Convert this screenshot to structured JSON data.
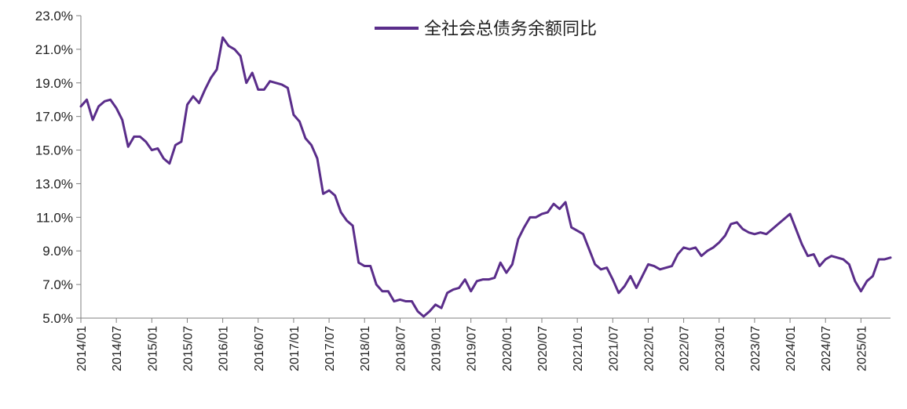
{
  "chart_data": {
    "type": "line",
    "title": "",
    "xlabel": "",
    "ylabel": "",
    "ylim": [
      0.05,
      0.23
    ],
    "y_ticks": [
      0.05,
      0.07,
      0.09,
      0.11,
      0.13,
      0.15,
      0.17,
      0.19,
      0.21,
      0.23
    ],
    "y_tick_labels": [
      "5.0%",
      "7.0%",
      "9.0%",
      "11.0%",
      "13.0%",
      "15.0%",
      "17.0%",
      "19.0%",
      "21.0%",
      "23.0%"
    ],
    "x_tick_labels": [
      "2014/01",
      "2014/07",
      "2015/01",
      "2015/07",
      "2016/01",
      "2016/07",
      "2017/01",
      "2017/07",
      "2018/01",
      "2018/07",
      "2019/01",
      "2019/07",
      "2020/01",
      "2020/07",
      "2021/01",
      "2021/07",
      "2022/01",
      "2022/07",
      "2023/01",
      "2023/07",
      "2024/01",
      "2024/07",
      "2025/01"
    ],
    "x_first": "2014/01",
    "x_last": "2025/06",
    "grid": false,
    "legend_position": "top-center",
    "line_color": "#5a2d8a",
    "series": [
      {
        "name": "全社会总债务余额同比",
        "values": [
          0.176,
          0.18,
          0.168,
          0.176,
          0.179,
          0.18,
          0.175,
          0.168,
          0.152,
          0.158,
          0.158,
          0.155,
          0.15,
          0.151,
          0.145,
          0.142,
          0.153,
          0.155,
          0.177,
          0.182,
          0.178,
          0.186,
          0.193,
          0.198,
          0.217,
          0.212,
          0.21,
          0.206,
          0.19,
          0.196,
          0.186,
          0.186,
          0.191,
          0.19,
          0.189,
          0.187,
          0.171,
          0.167,
          0.157,
          0.153,
          0.145,
          0.124,
          0.126,
          0.123,
          0.113,
          0.108,
          0.105,
          0.083,
          0.081,
          0.081,
          0.07,
          0.066,
          0.066,
          0.06,
          0.061,
          0.06,
          0.06,
          0.054,
          0.051,
          0.054,
          0.058,
          0.056,
          0.065,
          0.067,
          0.068,
          0.073,
          0.066,
          0.072,
          0.073,
          0.073,
          0.074,
          0.083,
          0.077,
          0.082,
          0.097,
          0.104,
          0.11,
          0.11,
          0.112,
          0.113,
          0.118,
          0.115,
          0.119,
          0.104,
          0.102,
          0.1,
          0.091,
          0.082,
          0.079,
          0.08,
          0.073,
          0.065,
          0.069,
          0.075,
          0.068,
          0.075,
          0.082,
          0.081,
          0.079,
          0.08,
          0.081,
          0.088,
          0.092,
          0.091,
          0.092,
          0.087,
          0.09,
          0.092,
          0.095,
          0.099,
          0.106,
          0.107,
          0.103,
          0.101,
          0.1,
          0.101,
          0.1,
          0.103,
          0.106,
          0.109,
          0.112,
          0.103,
          0.094,
          0.087,
          0.088,
          0.081,
          0.085,
          0.087,
          0.086,
          0.085,
          0.082,
          0.072,
          0.066,
          0.072,
          0.075,
          0.085,
          0.085,
          0.086
        ]
      }
    ]
  }
}
